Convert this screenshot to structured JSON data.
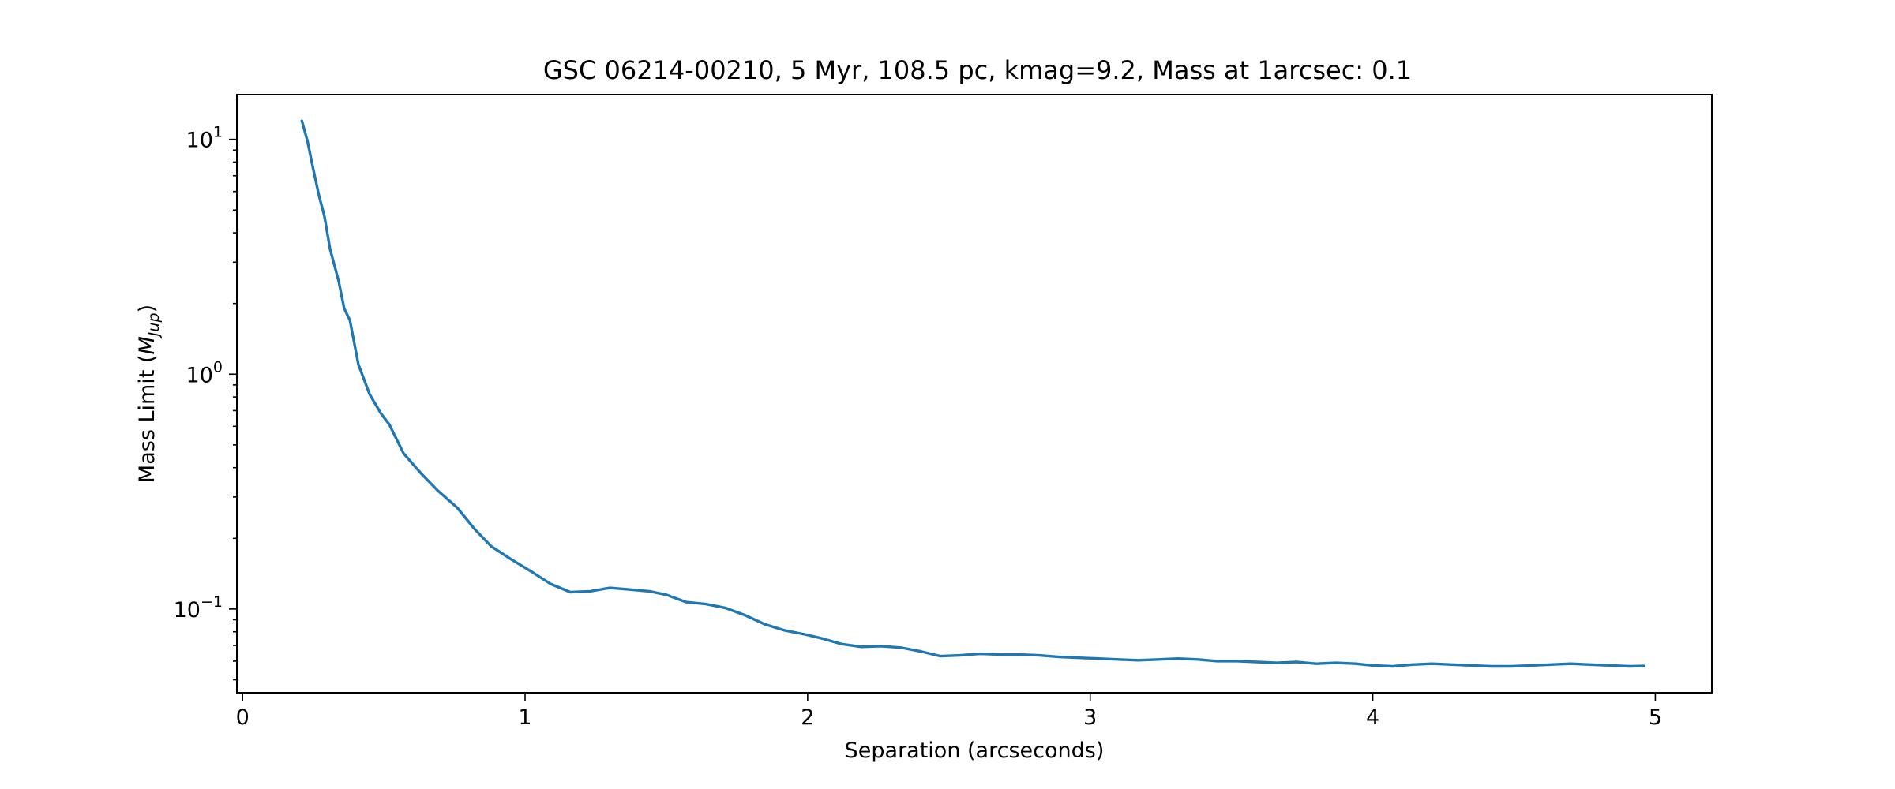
{
  "chart_data": {
    "type": "line",
    "title": "GSC 06214-00210, 5 Myr, 108.5 pc, kmag=9.2, Mass at 1arcsec: 0.1",
    "xlabel": "Separation (arcseconds)",
    "ylabel_main": "Mass Limit (",
    "ylabel_math": "M",
    "ylabel_sub": "Jup",
    "ylabel_close": ")",
    "yscale": "log",
    "xlim": [
      -0.02,
      5.2
    ],
    "ylim": [
      0.044,
      15.5
    ],
    "grid": false,
    "x_ticks": [
      {
        "value": 0,
        "label": "0"
      },
      {
        "value": 1,
        "label": "1"
      },
      {
        "value": 2,
        "label": "2"
      },
      {
        "value": 3,
        "label": "3"
      },
      {
        "value": 4,
        "label": "4"
      },
      {
        "value": 5,
        "label": "5"
      }
    ],
    "y_ticks": [
      {
        "value": 0.1,
        "base": "10",
        "exp": "−1"
      },
      {
        "value": 1,
        "base": "10",
        "exp": "0"
      },
      {
        "value": 10,
        "base": "10",
        "exp": "1"
      }
    ],
    "series": [
      {
        "color": "#1f77b4",
        "x": [
          0.21,
          0.23,
          0.25,
          0.27,
          0.29,
          0.31,
          0.34,
          0.36,
          0.38,
          0.41,
          0.45,
          0.49,
          0.52,
          0.57,
          0.63,
          0.69,
          0.76,
          0.82,
          0.88,
          0.95,
          1.02,
          1.09,
          1.16,
          1.23,
          1.3,
          1.37,
          1.44,
          1.5,
          1.57,
          1.64,
          1.71,
          1.78,
          1.85,
          1.92,
          1.99,
          2.05,
          2.12,
          2.19,
          2.26,
          2.33,
          2.4,
          2.47,
          2.54,
          2.61,
          2.68,
          2.75,
          2.82,
          2.89,
          2.96,
          3.03,
          3.1,
          3.17,
          3.24,
          3.31,
          3.38,
          3.45,
          3.52,
          3.59,
          3.66,
          3.73,
          3.8,
          3.87,
          3.94,
          4.0,
          4.07,
          4.14,
          4.21,
          4.28,
          4.35,
          4.42,
          4.49,
          4.56,
          4.63,
          4.7,
          4.77,
          4.84,
          4.91,
          4.96
        ],
        "y": [
          12.0,
          9.8,
          7.5,
          5.8,
          4.7,
          3.4,
          2.5,
          1.9,
          1.7,
          1.1,
          0.82,
          0.68,
          0.61,
          0.46,
          0.38,
          0.32,
          0.27,
          0.22,
          0.185,
          0.163,
          0.145,
          0.128,
          0.118,
          0.119,
          0.123,
          0.121,
          0.119,
          0.115,
          0.107,
          0.105,
          0.101,
          0.094,
          0.086,
          0.081,
          0.078,
          0.075,
          0.071,
          0.069,
          0.0695,
          0.0685,
          0.066,
          0.063,
          0.0635,
          0.0645,
          0.064,
          0.064,
          0.0635,
          0.0625,
          0.062,
          0.0615,
          0.061,
          0.0605,
          0.061,
          0.0615,
          0.061,
          0.06,
          0.06,
          0.0595,
          0.059,
          0.0595,
          0.0585,
          0.059,
          0.0585,
          0.0575,
          0.057,
          0.058,
          0.0585,
          0.058,
          0.0575,
          0.057,
          0.057,
          0.0575,
          0.058,
          0.0585,
          0.058,
          0.0575,
          0.057,
          0.0572
        ]
      }
    ]
  }
}
